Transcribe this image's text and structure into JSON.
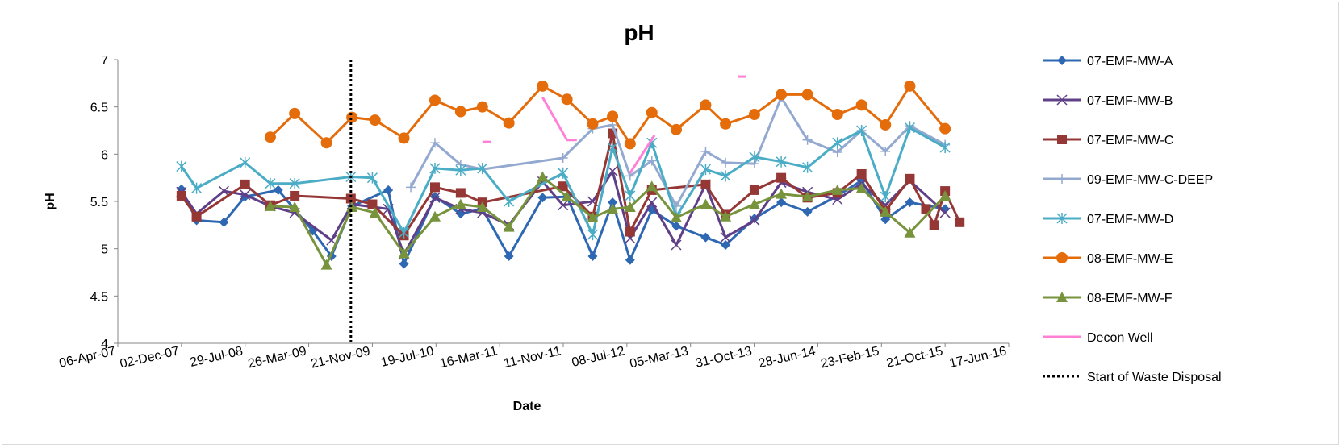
{
  "chart_data": {
    "type": "line",
    "title": "pH",
    "xlabel": "Date",
    "ylabel": "pH",
    "ylim": [
      4,
      7
    ],
    "yticks": [
      "4",
      "4.5",
      "5",
      "5.5",
      "6",
      "6.5",
      "7"
    ],
    "xlim": [
      "2007-04-06",
      "2016-06-17"
    ],
    "xticks": [
      {
        "date": "2007-04-06",
        "label": "06-Apr-07"
      },
      {
        "date": "2007-12-02",
        "label": "02-Dec-07"
      },
      {
        "date": "2008-07-29",
        "label": "29-Jul-08"
      },
      {
        "date": "2009-03-26",
        "label": "26-Mar-09"
      },
      {
        "date": "2009-11-21",
        "label": "21-Nov-09"
      },
      {
        "date": "2010-07-19",
        "label": "19-Jul-10"
      },
      {
        "date": "2011-03-16",
        "label": "16-Mar-11"
      },
      {
        "date": "2011-11-11",
        "label": "11-Nov-11"
      },
      {
        "date": "2012-07-08",
        "label": "08-Jul-12"
      },
      {
        "date": "2013-03-05",
        "label": "05-Mar-13"
      },
      {
        "date": "2013-10-31",
        "label": "31-Oct-13"
      },
      {
        "date": "2014-06-28",
        "label": "28-Jun-14"
      },
      {
        "date": "2015-02-23",
        "label": "23-Feb-15"
      },
      {
        "date": "2015-10-21",
        "label": "21-Oct-15"
      },
      {
        "date": "2016-06-17",
        "label": "17-Jun-16"
      }
    ],
    "grid": false,
    "legend_position": "right",
    "reference_line": {
      "name": "Start of Waste Disposal",
      "date": "2009-09-01",
      "color": "#000000"
    },
    "series": [
      {
        "name": "07-EMF-MW-A",
        "color": "#2e67b2",
        "marker": "diamond",
        "points": [
          [
            "2007-12-02",
            5.63
          ],
          [
            "2008-01-28",
            5.3
          ],
          [
            "2008-05-10",
            5.28
          ],
          [
            "2008-07-29",
            5.55
          ],
          [
            "2008-12-01",
            5.62
          ],
          [
            "2009-04-10",
            5.19
          ],
          [
            "2009-06-20",
            4.92
          ],
          [
            "2009-09-05",
            5.45
          ],
          [
            "2010-01-20",
            5.62
          ],
          [
            "2010-03-20",
            4.84
          ],
          [
            "2010-07-15",
            5.55
          ],
          [
            "2010-10-20",
            5.37
          ],
          [
            "2011-01-10",
            5.42
          ],
          [
            "2011-04-20",
            4.92
          ],
          [
            "2011-08-25",
            5.54
          ],
          [
            "2011-11-25",
            5.55
          ],
          [
            "2012-03-01",
            4.92
          ],
          [
            "2012-05-15",
            5.49
          ],
          [
            "2012-07-20",
            4.88
          ],
          [
            "2012-10-10",
            5.41
          ],
          [
            "2013-01-10",
            5.24
          ],
          [
            "2013-05-01",
            5.12
          ],
          [
            "2013-07-15",
            5.04
          ],
          [
            "2013-11-01",
            5.32
          ],
          [
            "2014-02-10",
            5.49
          ],
          [
            "2014-05-20",
            5.39
          ],
          [
            "2014-09-10",
            5.56
          ],
          [
            "2014-12-10",
            5.72
          ],
          [
            "2015-03-10",
            5.31
          ],
          [
            "2015-06-10",
            5.49
          ],
          [
            "2015-10-21",
            5.42
          ]
        ]
      },
      {
        "name": "07-EMF-MW-B",
        "color": "#5f3f87",
        "marker": "x",
        "points": [
          [
            "2007-12-02",
            5.6
          ],
          [
            "2008-01-28",
            5.37
          ],
          [
            "2008-05-10",
            5.61
          ],
          [
            "2008-07-29",
            5.57
          ],
          [
            "2008-11-01",
            5.45
          ],
          [
            "2009-02-01",
            5.38
          ],
          [
            "2009-06-20",
            5.09
          ],
          [
            "2009-09-05",
            5.47
          ],
          [
            "2010-01-20",
            5.42
          ],
          [
            "2010-03-20",
            4.94
          ],
          [
            "2010-07-15",
            5.54
          ],
          [
            "2010-10-20",
            5.42
          ],
          [
            "2011-01-10",
            5.38
          ],
          [
            "2011-04-20",
            5.25
          ],
          [
            "2011-08-25",
            5.71
          ],
          [
            "2011-11-10",
            5.46
          ],
          [
            "2012-03-01",
            5.5
          ],
          [
            "2012-05-15",
            5.82
          ],
          [
            "2012-07-20",
            5.11
          ],
          [
            "2012-10-10",
            5.49
          ],
          [
            "2013-01-10",
            5.04
          ],
          [
            "2013-05-01",
            5.68
          ],
          [
            "2013-07-15",
            5.12
          ],
          [
            "2013-11-01",
            5.3
          ],
          [
            "2014-02-10",
            5.7
          ],
          [
            "2014-05-20",
            5.6
          ],
          [
            "2014-09-10",
            5.52
          ],
          [
            "2014-12-10",
            5.69
          ],
          [
            "2015-03-10",
            5.46
          ],
          [
            "2015-06-10",
            5.72
          ],
          [
            "2015-10-21",
            5.38
          ]
        ]
      },
      {
        "name": "07-EMF-MW-C",
        "color": "#953735",
        "marker": "square",
        "points": [
          [
            "2007-12-02",
            5.56
          ],
          [
            "2008-01-28",
            5.34
          ],
          [
            "2008-07-29",
            5.68
          ],
          [
            "2008-11-01",
            5.46
          ],
          [
            "2009-02-01",
            5.56
          ],
          [
            "2009-09-01",
            5.53
          ],
          [
            "2009-11-21",
            5.47
          ],
          [
            "2010-03-20",
            5.14
          ],
          [
            "2010-07-15",
            5.65
          ],
          [
            "2010-10-20",
            5.59
          ],
          [
            "2011-01-10",
            5.49
          ],
          [
            "2011-11-10",
            5.66
          ],
          [
            "2012-03-01",
            5.34
          ],
          [
            "2012-05-15",
            6.22
          ],
          [
            "2012-07-20",
            5.18
          ],
          [
            "2012-10-10",
            5.62
          ],
          [
            "2013-05-01",
            5.68
          ],
          [
            "2013-07-15",
            5.36
          ],
          [
            "2013-11-01",
            5.62
          ],
          [
            "2014-02-10",
            5.75
          ],
          [
            "2014-05-20",
            5.54
          ],
          [
            "2014-09-10",
            5.59
          ],
          [
            "2014-12-10",
            5.79
          ],
          [
            "2015-03-10",
            5.4
          ],
          [
            "2015-06-10",
            5.74
          ],
          [
            "2015-08-10",
            5.42
          ],
          [
            "2015-09-10",
            5.25
          ],
          [
            "2015-10-21",
            5.61
          ],
          [
            "2015-12-15",
            5.28
          ]
        ]
      },
      {
        "name": "09-EMF-MW-C-DEEP",
        "color": "#94a9cf",
        "marker": "plus",
        "points": [
          [
            "2010-04-15",
            5.65
          ],
          [
            "2010-07-15",
            6.12
          ],
          [
            "2010-10-20",
            5.89
          ],
          [
            "2011-01-10",
            5.84
          ],
          [
            "2011-11-10",
            5.96
          ],
          [
            "2012-03-01",
            6.27
          ],
          [
            "2012-05-15",
            6.31
          ],
          [
            "2012-07-20",
            5.77
          ],
          [
            "2012-10-10",
            5.93
          ],
          [
            "2013-01-10",
            5.45
          ],
          [
            "2013-05-01",
            6.03
          ],
          [
            "2013-07-15",
            5.91
          ],
          [
            "2013-11-01",
            5.9
          ],
          [
            "2014-02-10",
            6.6
          ],
          [
            "2014-05-20",
            6.15
          ],
          [
            "2014-09-10",
            6.02
          ],
          [
            "2014-12-10",
            6.25
          ],
          [
            "2015-03-10",
            6.03
          ],
          [
            "2015-06-10",
            6.3
          ],
          [
            "2015-10-21",
            6.1
          ]
        ]
      },
      {
        "name": "07-EMF-MW-D",
        "color": "#4bacc6",
        "marker": "star",
        "points": [
          [
            "2007-12-02",
            5.87
          ],
          [
            "2008-01-28",
            5.64
          ],
          [
            "2008-07-29",
            5.91
          ],
          [
            "2008-11-01",
            5.69
          ],
          [
            "2009-02-01",
            5.69
          ],
          [
            "2009-09-01",
            5.76
          ],
          [
            "2009-11-21",
            5.75
          ],
          [
            "2010-03-20",
            5.17
          ],
          [
            "2010-07-15",
            5.85
          ],
          [
            "2010-10-20",
            5.83
          ],
          [
            "2011-01-10",
            5.85
          ],
          [
            "2011-04-20",
            5.5
          ],
          [
            "2011-11-10",
            5.8
          ],
          [
            "2012-03-01",
            5.15
          ],
          [
            "2012-05-15",
            6.07
          ],
          [
            "2012-07-20",
            5.56
          ],
          [
            "2012-10-10",
            6.12
          ],
          [
            "2013-01-10",
            5.34
          ],
          [
            "2013-05-01",
            5.84
          ],
          [
            "2013-07-15",
            5.77
          ],
          [
            "2013-11-01",
            5.97
          ],
          [
            "2014-02-10",
            5.92
          ],
          [
            "2014-05-20",
            5.86
          ],
          [
            "2014-09-10",
            6.12
          ],
          [
            "2014-12-10",
            6.25
          ],
          [
            "2015-03-10",
            5.55
          ],
          [
            "2015-06-10",
            6.28
          ],
          [
            "2015-10-21",
            6.07
          ]
        ]
      },
      {
        "name": "08-EMF-MW-E",
        "color": "#e46c0a",
        "marker": "circle",
        "points": [
          [
            "2008-11-01",
            6.18
          ],
          [
            "2009-02-01",
            6.43
          ],
          [
            "2009-06-01",
            6.12
          ],
          [
            "2009-09-05",
            6.39
          ],
          [
            "2009-12-01",
            6.36
          ],
          [
            "2010-03-20",
            6.17
          ],
          [
            "2010-07-15",
            6.57
          ],
          [
            "2010-10-20",
            6.45
          ],
          [
            "2011-01-10",
            6.5
          ],
          [
            "2011-04-20",
            6.33
          ],
          [
            "2011-08-25",
            6.72
          ],
          [
            "2011-11-25",
            6.58
          ],
          [
            "2012-03-01",
            6.32
          ],
          [
            "2012-05-15",
            6.4
          ],
          [
            "2012-07-20",
            6.11
          ],
          [
            "2012-10-10",
            6.44
          ],
          [
            "2013-01-10",
            6.26
          ],
          [
            "2013-05-01",
            6.52
          ],
          [
            "2013-07-15",
            6.32
          ],
          [
            "2013-11-01",
            6.42
          ],
          [
            "2014-02-10",
            6.63
          ],
          [
            "2014-05-20",
            6.63
          ],
          [
            "2014-09-10",
            6.42
          ],
          [
            "2014-12-10",
            6.52
          ],
          [
            "2015-03-10",
            6.31
          ],
          [
            "2015-06-10",
            6.72
          ],
          [
            "2015-10-21",
            6.27
          ]
        ]
      },
      {
        "name": "08-EMF-MW-F",
        "color": "#77933c",
        "marker": "triangle",
        "points": [
          [
            "2008-11-01",
            5.45
          ],
          [
            "2009-02-01",
            5.44
          ],
          [
            "2009-06-01",
            4.83
          ],
          [
            "2009-09-05",
            5.44
          ],
          [
            "2009-12-01",
            5.38
          ],
          [
            "2010-03-20",
            4.95
          ],
          [
            "2010-07-15",
            5.34
          ],
          [
            "2010-10-20",
            5.47
          ],
          [
            "2011-01-10",
            5.44
          ],
          [
            "2011-04-20",
            5.23
          ],
          [
            "2011-08-25",
            5.76
          ],
          [
            "2011-11-25",
            5.55
          ],
          [
            "2012-03-01",
            5.33
          ],
          [
            "2012-05-15",
            5.42
          ],
          [
            "2012-07-20",
            5.44
          ],
          [
            "2012-10-10",
            5.66
          ],
          [
            "2013-01-10",
            5.33
          ],
          [
            "2013-05-01",
            5.47
          ],
          [
            "2013-07-15",
            5.34
          ],
          [
            "2013-11-01",
            5.47
          ],
          [
            "2014-02-10",
            5.58
          ],
          [
            "2014-05-20",
            5.55
          ],
          [
            "2014-09-10",
            5.62
          ],
          [
            "2014-12-10",
            5.64
          ],
          [
            "2015-03-10",
            5.39
          ],
          [
            "2015-06-10",
            5.17
          ],
          [
            "2015-10-21",
            5.56
          ]
        ]
      },
      {
        "name": "Decon Well",
        "color": "#ff80d5",
        "marker": "none",
        "segments": [
          [
            [
              "2011-01-10",
              6.13
            ],
            [
              "2011-02-10",
              6.13
            ]
          ],
          [
            [
              "2011-08-25",
              6.6
            ],
            [
              "2011-11-25",
              6.15
            ],
            [
              "2012-01-01",
              6.15
            ]
          ],
          [
            [
              "2012-07-20",
              5.8
            ],
            [
              "2012-10-20",
              6.2
            ]
          ],
          [
            [
              "2013-09-01",
              6.82
            ],
            [
              "2013-10-01",
              6.82
            ]
          ]
        ]
      }
    ]
  }
}
